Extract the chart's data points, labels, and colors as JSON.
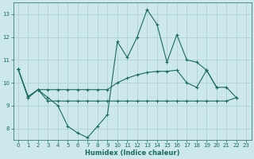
{
  "xlabel": "Humidex (Indice chaleur)",
  "background_color": "#cce8ec",
  "grid_color": "#aacdd4",
  "line_color": "#1a6b60",
  "xlim": [
    -0.5,
    23.5
  ],
  "ylim": [
    7.5,
    13.5
  ],
  "yticks": [
    8,
    9,
    10,
    11,
    12,
    13
  ],
  "xticks": [
    0,
    1,
    2,
    3,
    4,
    5,
    6,
    7,
    8,
    9,
    10,
    11,
    12,
    13,
    14,
    15,
    16,
    17,
    18,
    19,
    20,
    21,
    22,
    23
  ],
  "series": [
    [
      10.6,
      9.4,
      9.7,
      9.35,
      9.0,
      8.1,
      7.8,
      7.6,
      8.1,
      8.6,
      11.8,
      11.1,
      12.0,
      13.2,
      12.55,
      10.9,
      12.1,
      11.0,
      10.9,
      10.55,
      9.8,
      null,
      null,
      null
    ],
    [
      10.6,
      9.35,
      9.7,
      9.7,
      9.7,
      9.7,
      9.7,
      9.7,
      9.7,
      9.7,
      10.0,
      10.2,
      10.35,
      10.45,
      10.5,
      10.5,
      10.55,
      10.0,
      9.8,
      10.55,
      9.8,
      9.8,
      9.35,
      null
    ],
    [
      10.6,
      9.35,
      9.7,
      9.2,
      9.2,
      9.2,
      9.2,
      9.2,
      9.2,
      9.2,
      9.2,
      9.2,
      9.2,
      9.2,
      9.2,
      9.2,
      9.2,
      9.2,
      9.2,
      9.2,
      9.2,
      9.2,
      9.35,
      null
    ]
  ]
}
